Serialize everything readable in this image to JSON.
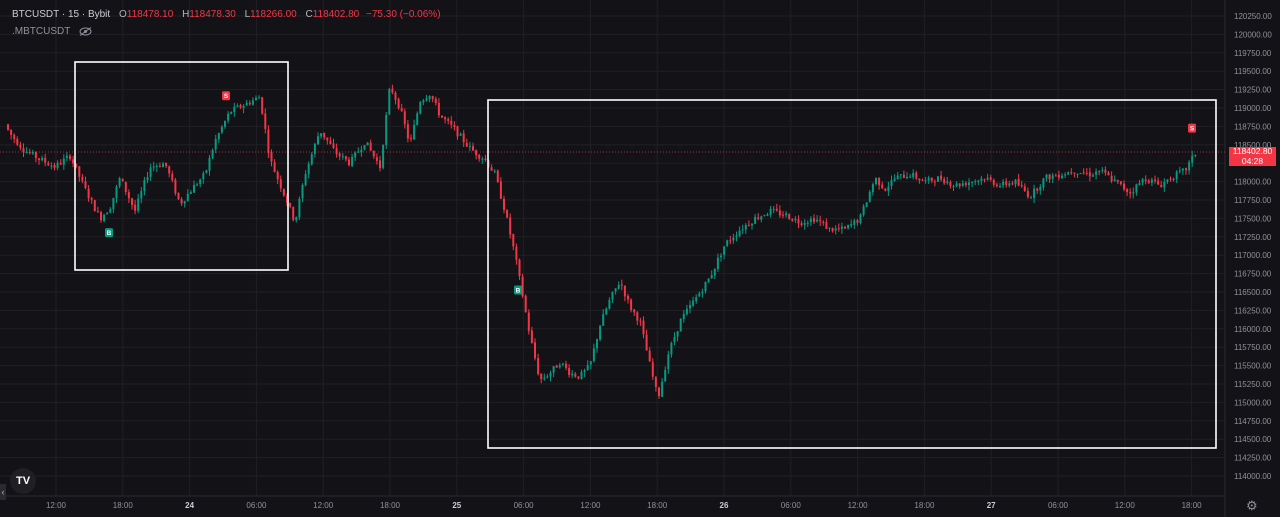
{
  "header": {
    "symbol": "BTCUSDT",
    "interval": "15",
    "exchange": "Bybit",
    "o_label": "O",
    "o": "118478.10",
    "h_label": "H",
    "h": "118478.30",
    "l_label": "L",
    "l": "118266.00",
    "c_label": "C",
    "c": "118402.80",
    "change": "−75.30 (−0.06%)",
    "indicator": ".MBTCUSDT"
  },
  "price_tag": {
    "price": "118402.80",
    "countdown": "04:28"
  },
  "logo_text": "TV",
  "chart_data": {
    "type": "candlestick",
    "price_axis": [
      "120250.00",
      "120000.00",
      "119750.00",
      "119500.00",
      "119250.00",
      "119000.00",
      "118750.00",
      "118500.00",
      "118250.00",
      "118000.00",
      "117750.00",
      "117500.00",
      "117250.00",
      "117000.00",
      "116750.00",
      "116500.00",
      "116250.00",
      "116000.00",
      "115750.00",
      "115500.00",
      "115250.00",
      "115000.00",
      "114750.00",
      "114500.00",
      "114250.00",
      "114000.00"
    ],
    "time_axis": [
      "12:00",
      "18:00",
      "24",
      "06:00",
      "12:00",
      "18:00",
      "25",
      "06:00",
      "12:00",
      "18:00",
      "26",
      "06:00",
      "12:00",
      "18:00",
      "27",
      "06:00",
      "12:00",
      "18:00"
    ],
    "bold_ticks": [
      "24",
      "25",
      "26",
      "27"
    ],
    "ylim": [
      113850,
      120350
    ],
    "last_price": 118402.8,
    "path": [
      [
        0,
        118900
      ],
      [
        10,
        118650
      ],
      [
        25,
        118420
      ],
      [
        40,
        118300
      ],
      [
        55,
        118200
      ],
      [
        70,
        118350
      ],
      [
        85,
        117900
      ],
      [
        100,
        117500
      ],
      [
        110,
        117650
      ],
      [
        120,
        118050
      ],
      [
        135,
        117600
      ],
      [
        150,
        118200
      ],
      [
        165,
        118250
      ],
      [
        180,
        117700
      ],
      [
        195,
        117950
      ],
      [
        205,
        118100
      ],
      [
        215,
        118550
      ],
      [
        230,
        118950
      ],
      [
        245,
        119050
      ],
      [
        260,
        119150
      ],
      [
        270,
        118300
      ],
      [
        285,
        117800
      ],
      [
        295,
        117450
      ],
      [
        305,
        118100
      ],
      [
        320,
        118700
      ],
      [
        335,
        118400
      ],
      [
        350,
        118250
      ],
      [
        365,
        118550
      ],
      [
        380,
        118200
      ],
      [
        390,
        119300
      ],
      [
        400,
        119000
      ],
      [
        410,
        118500
      ],
      [
        420,
        119100
      ],
      [
        430,
        119200
      ],
      [
        440,
        118900
      ],
      [
        455,
        118700
      ],
      [
        470,
        118450
      ],
      [
        485,
        118300
      ],
      [
        495,
        118100
      ],
      [
        505,
        117600
      ],
      [
        515,
        117000
      ],
      [
        522,
        116500
      ],
      [
        530,
        115900
      ],
      [
        540,
        115300
      ],
      [
        550,
        115400
      ],
      [
        560,
        115550
      ],
      [
        570,
        115400
      ],
      [
        580,
        115350
      ],
      [
        590,
        115500
      ],
      [
        600,
        116050
      ],
      [
        610,
        116400
      ],
      [
        620,
        116650
      ],
      [
        630,
        116300
      ],
      [
        640,
        116100
      ],
      [
        650,
        115500
      ],
      [
        658,
        115050
      ],
      [
        668,
        115650
      ],
      [
        680,
        116100
      ],
      [
        695,
        116400
      ],
      [
        710,
        116700
      ],
      [
        725,
        117150
      ],
      [
        740,
        117350
      ],
      [
        755,
        117500
      ],
      [
        770,
        117600
      ],
      [
        785,
        117550
      ],
      [
        800,
        117450
      ],
      [
        815,
        117500
      ],
      [
        830,
        117350
      ],
      [
        845,
        117350
      ],
      [
        860,
        117500
      ],
      [
        875,
        118050
      ],
      [
        885,
        117900
      ],
      [
        895,
        118050
      ],
      [
        910,
        118100
      ],
      [
        925,
        118000
      ],
      [
        940,
        118050
      ],
      [
        955,
        117950
      ],
      [
        970,
        118000
      ],
      [
        985,
        118050
      ],
      [
        1000,
        117950
      ],
      [
        1015,
        118000
      ],
      [
        1030,
        117800
      ],
      [
        1045,
        118050
      ],
      [
        1060,
        118100
      ],
      [
        1075,
        118150
      ],
      [
        1090,
        118100
      ],
      [
        1100,
        118150
      ],
      [
        1115,
        118000
      ],
      [
        1130,
        117850
      ],
      [
        1145,
        118050
      ],
      [
        1160,
        117950
      ],
      [
        1170,
        118050
      ],
      [
        1185,
        118150
      ],
      [
        1196,
        118400
      ]
    ],
    "markers": [
      {
        "label": "B",
        "price": 117300,
        "t": 109
      },
      {
        "label": "S",
        "price": 119160,
        "t": 226
      },
      {
        "label": "B",
        "price": 116520,
        "t": 518
      },
      {
        "label": "S",
        "price": 118720,
        "t": 1192
      }
    ],
    "colors": {
      "up": "#089981",
      "down": "#f23645",
      "marker_buy": "#089981",
      "marker_sell": "#f23645",
      "background": "#131317",
      "grid": "#1f1f25"
    }
  }
}
